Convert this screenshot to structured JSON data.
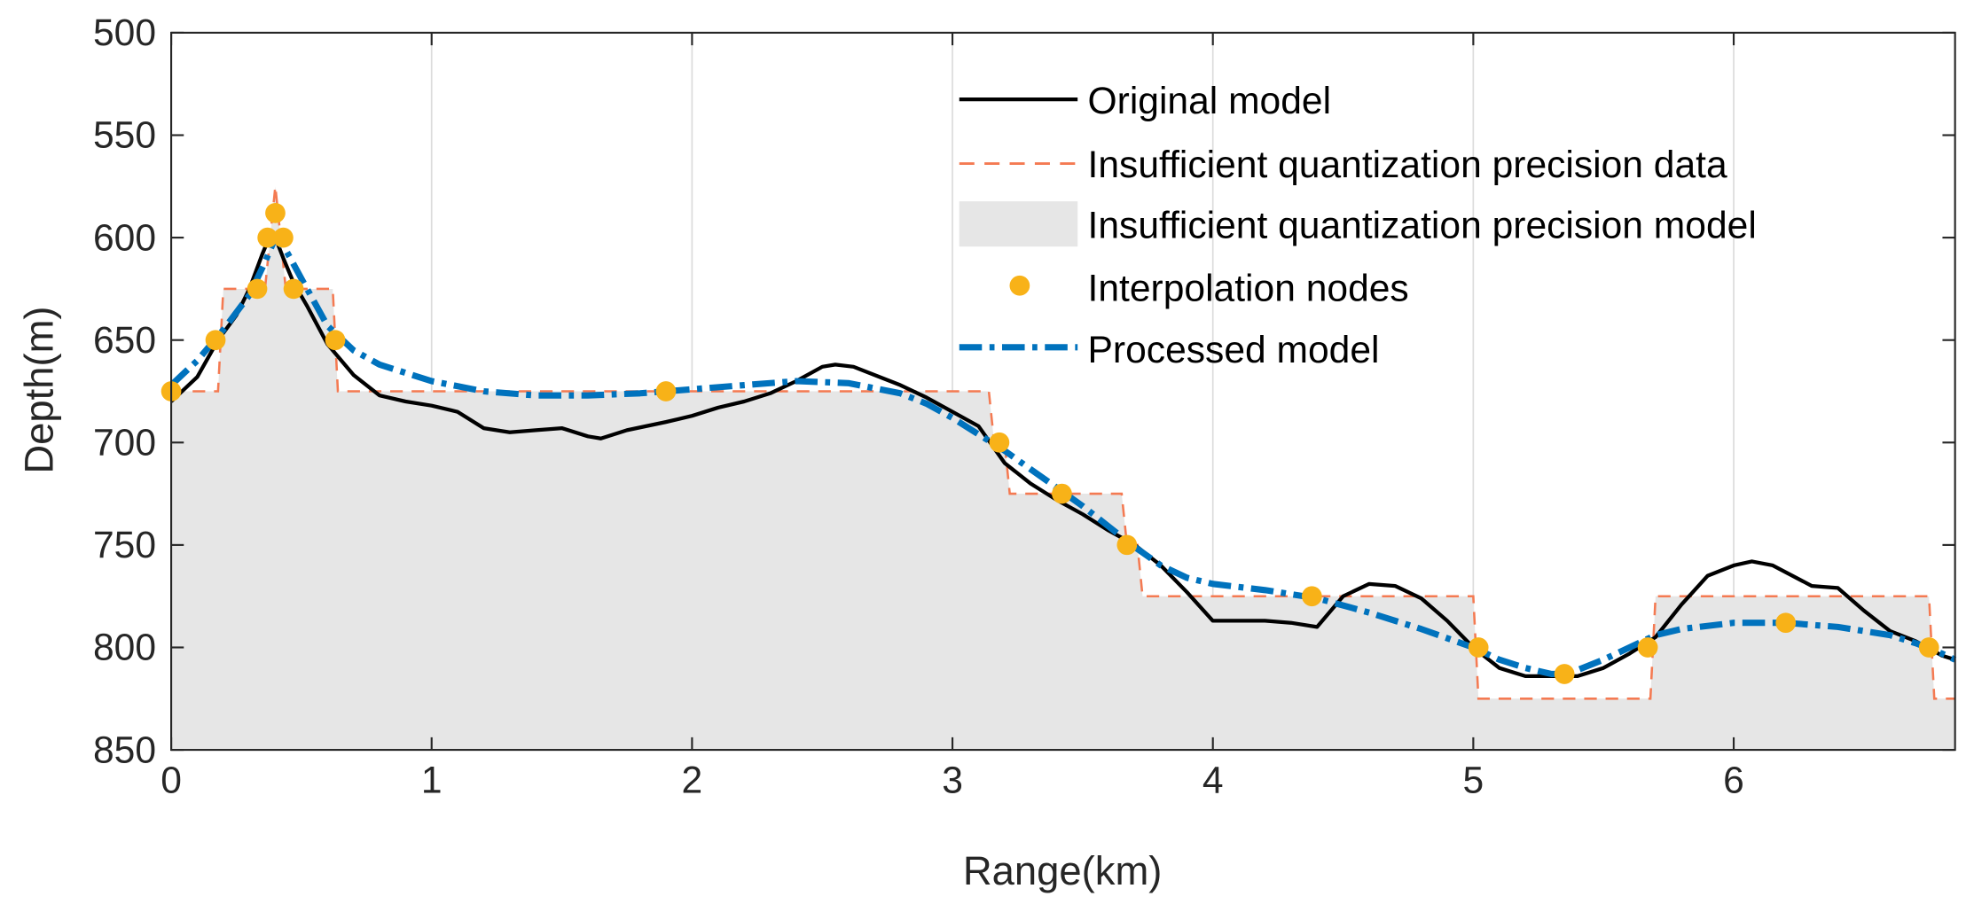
{
  "chart_data": {
    "type": "line",
    "title": "",
    "xlabel": "Range(km)",
    "ylabel": "Depth(m)",
    "xlim": [
      0,
      6.85
    ],
    "ylim": [
      500,
      850
    ],
    "y_reversed": true,
    "grid": "vertical",
    "xticks": [
      0,
      1,
      2,
      3,
      4,
      5,
      6
    ],
    "yticks": [
      500,
      550,
      600,
      650,
      700,
      750,
      800,
      850
    ],
    "legend_position": "top-right",
    "legend": [
      {
        "name": "Original model",
        "style": "solid line",
        "color": "#000000"
      },
      {
        "name": "Insufficient quantization precision data",
        "style": "dashed line",
        "color": "#F47A52"
      },
      {
        "name": "Insufficient quantization precision model",
        "style": "filled area",
        "color": "#E6E6E6"
      },
      {
        "name": "Interpolation nodes",
        "style": "markers",
        "color": "#F8B218"
      },
      {
        "name": "Processed model",
        "style": "dash-dot line",
        "color": "#0072BD"
      }
    ],
    "series": [
      {
        "name": "Original model",
        "x": [
          0,
          0.1,
          0.18,
          0.25,
          0.3,
          0.35,
          0.38,
          0.4,
          0.43,
          0.47,
          0.52,
          0.6,
          0.7,
          0.8,
          0.9,
          1.0,
          1.1,
          1.2,
          1.3,
          1.4,
          1.5,
          1.6,
          1.65,
          1.75,
          1.9,
          2.0,
          2.1,
          2.2,
          2.3,
          2.4,
          2.5,
          2.55,
          2.62,
          2.7,
          2.8,
          2.9,
          3.0,
          3.1,
          3.2,
          3.3,
          3.4,
          3.5,
          3.6,
          3.7,
          3.8,
          3.9,
          4.0,
          4.1,
          4.2,
          4.3,
          4.4,
          4.5,
          4.6,
          4.7,
          4.8,
          4.9,
          5.0,
          5.1,
          5.2,
          5.3,
          5.4,
          5.5,
          5.6,
          5.7,
          5.8,
          5.9,
          6.0,
          6.07,
          6.15,
          6.3,
          6.4,
          6.5,
          6.6,
          6.7,
          6.8,
          6.85
        ],
        "y": [
          680,
          668,
          650,
          638,
          625,
          608,
          599,
          600,
          610,
          622,
          633,
          652,
          667,
          677,
          680,
          682,
          685,
          693,
          695,
          694,
          693,
          697,
          698,
          694,
          690,
          687,
          683,
          680,
          676,
          670,
          663,
          662,
          663,
          667,
          672,
          678,
          685,
          692,
          710,
          720,
          728,
          735,
          743,
          750,
          760,
          773,
          787,
          787,
          787,
          788,
          790,
          775,
          769,
          770,
          776,
          787,
          800,
          810,
          814,
          814,
          814,
          810,
          803,
          795,
          779,
          765,
          760,
          758,
          760,
          770,
          771,
          782,
          792,
          797,
          804,
          806
        ]
      },
      {
        "name": "Insufficient quantization precision data",
        "x": [
          0,
          0.18,
          0.2,
          0.36,
          0.38,
          0.4,
          0.42,
          0.44,
          0.62,
          0.64,
          3.14,
          3.16,
          3.2,
          3.22,
          3.65,
          3.67,
          3.71,
          3.73,
          5.0,
          5.02,
          5.68,
          5.7,
          6.75,
          6.77,
          6.85
        ],
        "y": [
          675,
          675,
          625,
          625,
          600,
          575,
          600,
          625,
          625,
          675,
          675,
          700,
          700,
          725,
          725,
          750,
          750,
          775,
          775,
          825,
          825,
          775,
          775,
          825,
          825
        ]
      },
      {
        "name": "Interpolation nodes",
        "x": [
          0.0,
          0.17,
          0.33,
          0.37,
          0.4,
          0.43,
          0.47,
          0.63,
          1.9,
          3.18,
          3.42,
          3.67,
          4.38,
          5.02,
          5.35,
          5.67,
          6.2,
          6.75
        ],
        "y": [
          675,
          650,
          625,
          600,
          588,
          600,
          625,
          650,
          675,
          700,
          725,
          750,
          775,
          800,
          813,
          800,
          788,
          800
        ]
      },
      {
        "name": "Processed model",
        "x": [
          0,
          0.1,
          0.2,
          0.3,
          0.36,
          0.4,
          0.44,
          0.5,
          0.6,
          0.7,
          0.8,
          1.0,
          1.2,
          1.4,
          1.6,
          1.8,
          2.0,
          2.2,
          2.4,
          2.6,
          2.8,
          2.9,
          3.0,
          3.1,
          3.2,
          3.3,
          3.4,
          3.5,
          3.6,
          3.7,
          3.8,
          3.9,
          4.0,
          4.2,
          4.4,
          4.6,
          4.8,
          5.0,
          5.1,
          5.2,
          5.3,
          5.35,
          5.4,
          5.5,
          5.6,
          5.7,
          5.8,
          6.0,
          6.2,
          6.4,
          6.6,
          6.7,
          6.8,
          6.85
        ],
        "y": [
          672,
          660,
          645,
          628,
          612,
          600,
          606,
          620,
          643,
          655,
          662,
          670,
          675,
          677,
          677,
          676,
          674,
          672,
          670,
          671,
          676,
          681,
          688,
          696,
          704,
          713,
          722,
          731,
          741,
          751,
          760,
          766,
          769,
          772,
          776,
          783,
          791,
          800,
          806,
          810,
          813,
          813,
          811,
          806,
          800,
          794,
          791,
          788,
          788,
          790,
          794,
          798,
          803,
          806
        ]
      }
    ]
  }
}
